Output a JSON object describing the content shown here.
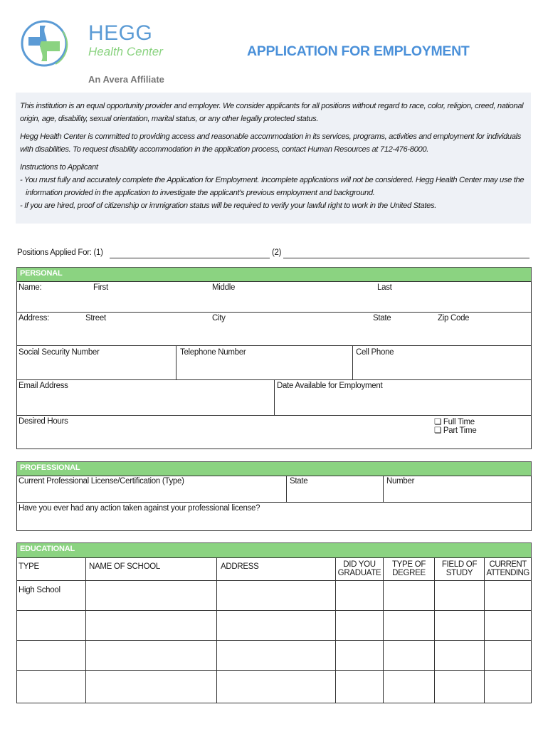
{
  "logo": {
    "name": "HEGG",
    "subtitle": "Health Center",
    "affiliate": "An Avera Affiliate",
    "colors": {
      "blue": "#5b9bd5",
      "green": "#8bd381"
    }
  },
  "title": "APPLICATION FOR EMPLOYMENT",
  "intro": {
    "p1": "This institution is an equal opportunity provider and employer. We consider applicants for all positions without regard to race, color, religion, creed, national origin, age, disability, sexual orientation, marital status, or any other legally protected status.",
    "p2": "Hegg Health Center is committed to providing access and reasonable accommodation in its services, programs, activities and employment for individuals with disabilities. To request disability accommodation in the application process, contact Human Resources at 712-476-8000.",
    "instructions_title": "Instructions to Applicant",
    "i1": "- You must fully and accurately complete the Application for Employment. Incomplete applications will not be considered. Hegg Health Center may use the information provided in the application to investigate the applicant's previous employment and background.",
    "i2": "- If you are hired, proof of citizenship or immigration status will be required to verify your lawful right to work in the United States."
  },
  "positions": {
    "label": "Positions Applied For: (1)",
    "second": "(2)"
  },
  "personal": {
    "header": "PERSONAL",
    "name": "Name:",
    "first": "First",
    "middle": "Middle",
    "last": "Last",
    "address": "Address:",
    "street": "Street",
    "city": "City",
    "state": "State",
    "zip": "Zip Code",
    "ssn": "Social Security Number",
    "phone": "Telephone Number",
    "cell": "Cell Phone",
    "email": "Email Address",
    "date_available": "Date Available for Employment",
    "desired_hours": "Desired Hours",
    "full_time": "Full Time",
    "part_time": "Part Time"
  },
  "professional": {
    "header": "PROFESSIONAL",
    "license": "Current Professional License/Certification (Type)",
    "state": "State",
    "number": "Number",
    "action": "Have you ever had any action taken against your professional license?"
  },
  "educational": {
    "header": "EDUCATIONAL",
    "columns": [
      "TYPE",
      "NAME OF SCHOOL",
      "ADDRESS",
      "DID YOU GRADUATE",
      "TYPE OF DEGREE",
      "FIELD OF STUDY",
      "CURRENT ATTENDING"
    ],
    "rows": [
      "High School",
      "",
      "",
      ""
    ]
  }
}
